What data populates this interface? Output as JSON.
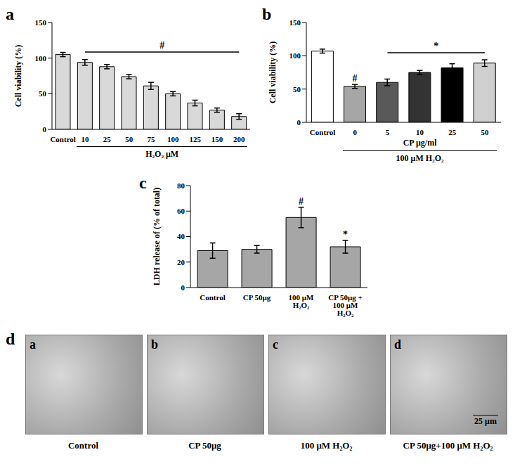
{
  "chart_data": [
    {
      "type": "bar",
      "panel": "a",
      "categories": [
        "Control",
        "10",
        "25",
        "50",
        "75",
        "100",
        "125",
        "150",
        "200"
      ],
      "values": [
        105,
        94,
        88,
        74,
        61,
        50,
        37,
        27,
        18
      ],
      "errors": [
        3,
        4,
        3,
        3,
        5,
        3,
        4,
        3,
        4
      ],
      "color": "#d9d9d9",
      "ylabel": "Cell viability (%)",
      "ylim": [
        0,
        150
      ],
      "yticks": [
        0,
        50,
        100,
        150
      ],
      "group": {
        "label": "H₂O₂ μM",
        "from": "10",
        "to": "200"
      },
      "annotations": [
        {
          "text": "#",
          "from": "10",
          "to": "200"
        }
      ]
    },
    {
      "type": "bar",
      "panel": "b",
      "categories": [
        "Control",
        "0",
        "5",
        "10",
        "25",
        "50"
      ],
      "values": [
        107,
        54,
        60,
        75,
        82,
        89
      ],
      "errors": [
        3,
        3,
        5,
        3,
        6,
        5
      ],
      "colors": [
        "#ffffff",
        "#a6a6a6",
        "#595959",
        "#333333",
        "#000000",
        "#d0d0d0"
      ],
      "ylabel": "Cell viability (%)",
      "xlabel": "CP μg/ml",
      "ylim": [
        0,
        150
      ],
      "yticks": [
        0,
        50,
        100,
        150
      ],
      "group": {
        "label": "100 μM H₂O₂",
        "from": "0",
        "to": "50"
      },
      "annotations": [
        {
          "text": "#",
          "at": "0"
        },
        {
          "text": "*",
          "from": "5",
          "to": "50"
        }
      ]
    },
    {
      "type": "bar",
      "panel": "c",
      "categories": [
        "Control",
        "CP 50μg",
        "100 μM H₂O₂",
        "CP 50μg + 100 μM H₂O₂"
      ],
      "values": [
        29,
        30,
        55,
        32
      ],
      "errors": [
        6,
        3,
        8,
        5
      ],
      "color": "#a6a6a6",
      "ylabel": "LDH release of (% of total)",
      "ylim": [
        0,
        80
      ],
      "yticks": [
        0,
        20,
        40,
        60,
        80
      ],
      "annotations": [
        {
          "text": "#",
          "at": "100 μM H₂O₂"
        },
        {
          "text": "*",
          "at": "CP 50μg + 100 μM H₂O₂"
        }
      ]
    }
  ],
  "images": {
    "panel": "d",
    "items": [
      {
        "label": "a",
        "caption": "Control"
      },
      {
        "label": "b",
        "caption": "CP 50μg"
      },
      {
        "label": "c",
        "caption": "100 μM H₂O₂"
      },
      {
        "label": "d",
        "caption": "CP 50μg+100 μM H₂O₂"
      }
    ],
    "scale_bar": "25 μm"
  }
}
